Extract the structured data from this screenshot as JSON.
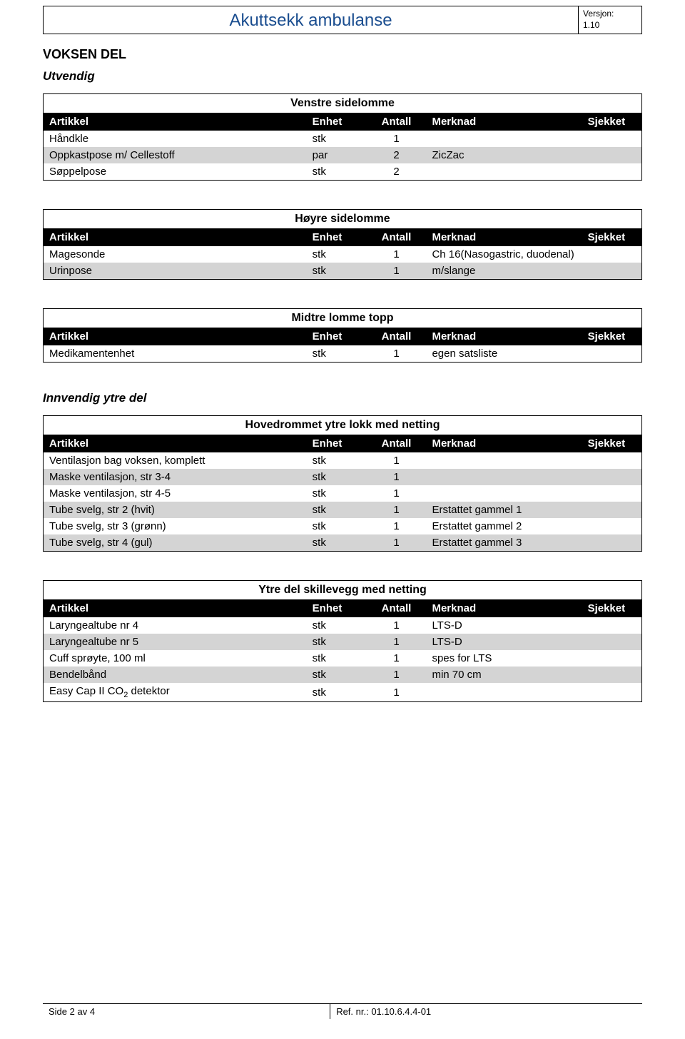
{
  "header": {
    "title": "Akuttsekk ambulanse",
    "version_label": "Versjon:",
    "version_value": "1.10"
  },
  "section_title": "VOKSEN DEL",
  "subsection_utvendig": "Utvendig",
  "subsection_innvendig": "Innvendig ytre del",
  "columns": {
    "artikkel": "Artikkel",
    "enhet": "Enhet",
    "antall": "Antall",
    "merknad": "Merknad",
    "sjekket": "Sjekket"
  },
  "tables": {
    "venstre": {
      "title": "Venstre sidelomme",
      "rows": [
        {
          "artikkel": "Håndkle",
          "enhet": "stk",
          "antall": "1",
          "merknad": "",
          "shade": "white"
        },
        {
          "artikkel": "Oppkastpose m/ Cellestoff",
          "enhet": "par",
          "antall": "2",
          "merknad": "ZicZac",
          "shade": "grey"
        },
        {
          "artikkel": "Søppelpose",
          "enhet": "stk",
          "antall": "2",
          "merknad": "",
          "shade": "white"
        }
      ]
    },
    "hoyre": {
      "title": "Høyre sidelomme",
      "rows": [
        {
          "artikkel": "Magesonde",
          "enhet": "stk",
          "antall": "1",
          "merknad": "Ch 16(Nasogastric, duodenal)",
          "merknad_small": true,
          "shade": "white"
        },
        {
          "artikkel": "Urinpose",
          "enhet": "stk",
          "antall": "1",
          "merknad": "m/slange",
          "shade": "grey"
        }
      ]
    },
    "midtre": {
      "title": "Midtre lomme topp",
      "rows": [
        {
          "artikkel": "Medikamentenhet",
          "enhet": "stk",
          "antall": "1",
          "merknad": "egen satsliste",
          "shade": "white"
        }
      ]
    },
    "hovedrom": {
      "title": "Hovedrommet ytre lokk med netting",
      "rows": [
        {
          "artikkel": "Ventilasjon bag voksen, komplett",
          "enhet": "stk",
          "antall": "1",
          "merknad": "",
          "shade": "white"
        },
        {
          "artikkel": "Maske ventilasjon, str 3-4",
          "enhet": "stk",
          "antall": "1",
          "merknad": "",
          "shade": "grey"
        },
        {
          "artikkel": "Maske ventilasjon, str 4-5",
          "enhet": "stk",
          "antall": "1",
          "merknad": "",
          "shade": "white"
        },
        {
          "artikkel": "Tube svelg, str 2 (hvit)",
          "enhet": "stk",
          "antall": "1",
          "merknad": "Erstattet gammel 1",
          "shade": "grey"
        },
        {
          "artikkel": "Tube svelg, str 3 (grønn)",
          "enhet": "stk",
          "antall": "1",
          "merknad": "Erstattet gammel 2",
          "shade": "white"
        },
        {
          "artikkel": "Tube svelg, str 4 (gul)",
          "enhet": "stk",
          "antall": "1",
          "merknad": "Erstattet gammel 3",
          "shade": "grey"
        }
      ]
    },
    "ytredel": {
      "title": "Ytre del skillevegg med netting",
      "rows": [
        {
          "artikkel": "Laryngealtube nr 4",
          "enhet": "stk",
          "antall": "1",
          "merknad": "LTS-D",
          "shade": "white"
        },
        {
          "artikkel": "Laryngealtube nr 5",
          "enhet": "stk",
          "antall": "1",
          "merknad": "LTS-D",
          "shade": "grey"
        },
        {
          "artikkel": "Cuff sprøyte, 100 ml",
          "enhet": "stk",
          "antall": "1",
          "merknad": "spes for LTS",
          "shade": "white"
        },
        {
          "artikkel": "Bendelbånd",
          "enhet": "stk",
          "antall": "1",
          "merknad": "min 70 cm",
          "shade": "grey"
        },
        {
          "artikkel_html": "Easy Cap II CO<span class=\"sub\">2</span> detektor",
          "enhet": "stk",
          "antall": "1",
          "merknad": "",
          "shade": "white"
        }
      ]
    }
  },
  "footer": {
    "left": "Side 2 av 4",
    "right": "Ref. nr.: 01.10.6.4.4-01"
  },
  "colors": {
    "title_color": "#1a4d8f",
    "header_bg": "#000000",
    "header_fg": "#ffffff",
    "row_grey": "#d4d4d4",
    "row_white": "#ffffff",
    "border": "#000000"
  }
}
